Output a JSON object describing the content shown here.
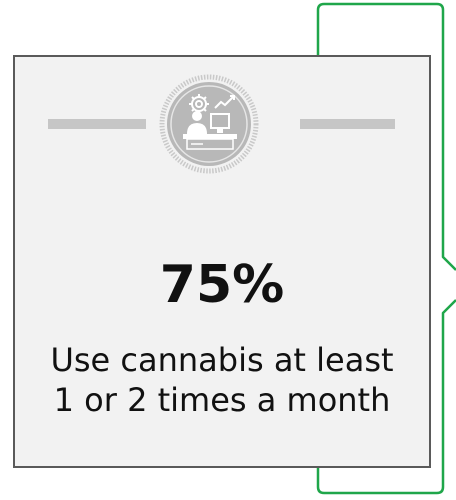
{
  "stat": {
    "value": "75%",
    "caption_line1": "Use cannabis at least",
    "caption_line2": "1 or 2 times a month"
  },
  "icon": "engineer-at-workstation-icon",
  "colors": {
    "bracket": "#1fa64a",
    "card_background": "#f2f2f2",
    "card_border": "#5a5a5a",
    "badge": "#b8b8b8",
    "rule": "#c6c6c6"
  }
}
